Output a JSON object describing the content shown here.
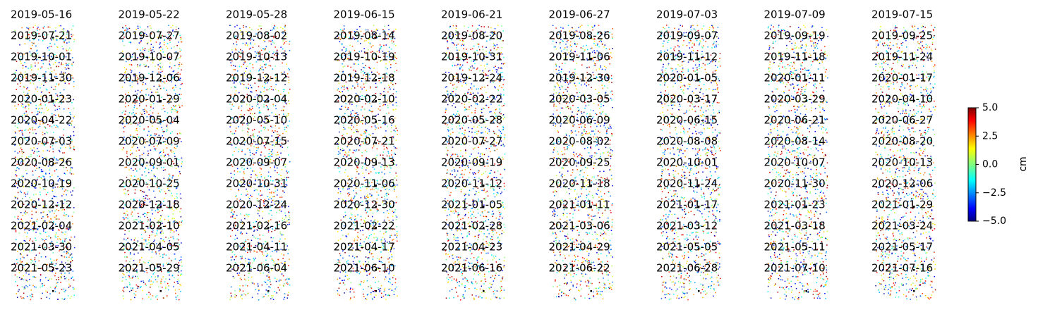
{
  "chart_data": {
    "type": "image-grid",
    "panels": [
      "2019-05-16",
      "2019-05-22",
      "2019-05-28",
      "2019-06-15",
      "2019-06-21",
      "2019-06-27",
      "2019-07-03",
      "2019-07-09",
      "2019-07-15",
      "2019-07-21",
      "2019-07-27",
      "2019-08-02",
      "2019-08-14",
      "2019-08-20",
      "2019-08-26",
      "2019-09-07",
      "2019-09-19",
      "2019-09-25",
      "2019-10-01",
      "2019-10-07",
      "2019-10-13",
      "2019-10-19",
      "2019-10-31",
      "2019-11-06",
      "2019-11-12",
      "2019-11-18",
      "2019-11-24",
      "2019-11-30",
      "2019-12-06",
      "2019-12-12",
      "2019-12-18",
      "2019-12-24",
      "2019-12-30",
      "2020-01-05",
      "2020-01-11",
      "2020-01-17",
      "2020-01-23",
      "2020-01-29",
      "2020-02-04",
      "2020-02-10",
      "2020-02-22",
      "2020-03-05",
      "2020-03-17",
      "2020-03-29",
      "2020-04-10",
      "2020-04-22",
      "2020-05-04",
      "2020-05-10",
      "2020-05-16",
      "2020-05-28",
      "2020-06-09",
      "2020-06-15",
      "2020-06-21",
      "2020-06-27",
      "2020-07-03",
      "2020-07-09",
      "2020-07-15",
      "2020-07-21",
      "2020-07-27",
      "2020-08-02",
      "2020-08-08",
      "2020-08-14",
      "2020-08-20",
      "2020-08-26",
      "2020-09-01",
      "2020-09-07",
      "2020-09-13",
      "2020-09-19",
      "2020-09-25",
      "2020-10-01",
      "2020-10-07",
      "2020-10-13",
      "2020-10-19",
      "2020-10-25",
      "2020-10-31",
      "2020-11-06",
      "2020-11-12",
      "2020-11-18",
      "2020-11-24",
      "2020-11-30",
      "2020-12-06",
      "2020-12-12",
      "2020-12-18",
      "2020-12-24",
      "2020-12-30",
      "2021-01-05",
      "2021-01-11",
      "2021-01-17",
      "2021-01-23",
      "2021-01-29",
      "2021-02-04",
      "2021-02-10",
      "2021-02-16",
      "2021-02-22",
      "2021-02-28",
      "2021-03-06",
      "2021-03-12",
      "2021-03-18",
      "2021-03-24",
      "2021-03-30",
      "2021-04-05",
      "2021-04-11",
      "2021-04-17",
      "2021-04-23",
      "2021-04-29",
      "2021-05-05",
      "2021-05-11",
      "2021-05-17",
      "2021-05-23",
      "2021-05-29",
      "2021-06-04",
      "2021-06-10",
      "2021-06-16",
      "2021-06-22",
      "2021-06-28",
      "2021-07-10",
      "2021-07-16"
    ],
    "columns": 9,
    "colorbar": {
      "label": "cm",
      "ylim": [
        -5,
        5
      ],
      "yticks": [
        {
          "value": -5,
          "label": "−5.0"
        },
        {
          "value": -2.5,
          "label": "−2.5"
        },
        {
          "value": 0,
          "label": "0.0"
        },
        {
          "value": 2.5,
          "label": "2.5"
        },
        {
          "value": 5,
          "label": "5.0"
        }
      ]
    }
  }
}
